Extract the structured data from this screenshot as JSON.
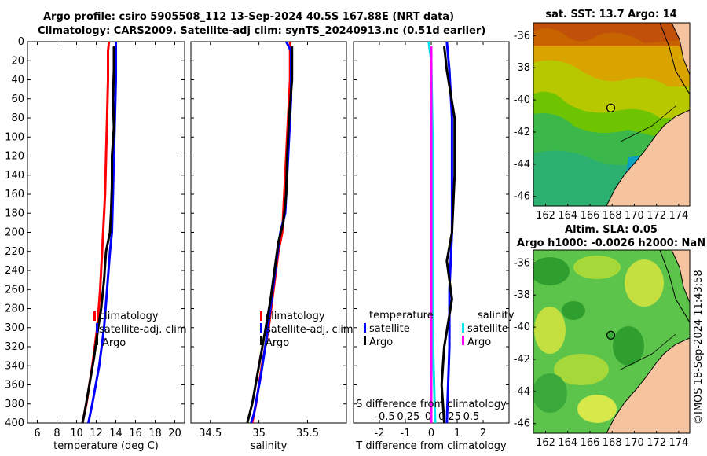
{
  "header": {
    "line1": "Argo profile: csiro 5905508_112 13-Sep-2024 40.5S 167.88E (NRT data)",
    "line2": "Climatology: CARS2009. Satellite-adj clim: synTS_20240913.nc (0.51d earlier)"
  },
  "colors": {
    "climatology": "#ff0000",
    "satellite": "#0000ff",
    "argo": "#000000",
    "sal_satellite": "#00e5ee",
    "sal_argo": "#ff00ff",
    "land": "#f5c49e"
  },
  "chart_data": [
    {
      "type": "line",
      "name": "temperature-profile",
      "xlabel": "temperature (deg C)",
      "xlim": [
        5,
        21
      ],
      "xticks": [
        6,
        8,
        10,
        12,
        14,
        16,
        18,
        20
      ],
      "ylim": [
        0,
        400
      ],
      "yticks": [
        0,
        20,
        40,
        60,
        80,
        100,
        120,
        140,
        160,
        180,
        200,
        220,
        240,
        260,
        280,
        300,
        320,
        340,
        360,
        380,
        400
      ],
      "legend": [
        "climatology",
        "satellite-adj. clim",
        "Argo"
      ],
      "series": [
        {
          "name": "climatology",
          "color": "#ff0000",
          "points": [
            [
              13.3,
              0
            ],
            [
              13.2,
              10
            ],
            [
              13.2,
              40
            ],
            [
              13.1,
              80
            ],
            [
              13.0,
              120
            ],
            [
              12.9,
              160
            ],
            [
              12.7,
              200
            ],
            [
              12.6,
              220
            ],
            [
              12.4,
              260
            ],
            [
              12.1,
              300
            ],
            [
              11.6,
              340
            ],
            [
              11.0,
              380
            ],
            [
              10.6,
              400
            ]
          ]
        },
        {
          "name": "satellite-adj. clim",
          "color": "#0000ff",
          "points": [
            [
              14.0,
              0
            ],
            [
              14.0,
              40
            ],
            [
              13.9,
              80
            ],
            [
              13.8,
              120
            ],
            [
              13.7,
              160
            ],
            [
              13.6,
              200
            ],
            [
              13.4,
              220
            ],
            [
              13.1,
              260
            ],
            [
              12.8,
              300
            ],
            [
              12.3,
              340
            ],
            [
              11.6,
              380
            ],
            [
              11.2,
              400
            ]
          ]
        },
        {
          "name": "Argo",
          "color": "#000000",
          "points": [
            [
              13.8,
              5
            ],
            [
              13.8,
              30
            ],
            [
              13.7,
              60
            ],
            [
              13.8,
              90
            ],
            [
              13.6,
              120
            ],
            [
              13.6,
              150
            ],
            [
              13.5,
              180
            ],
            [
              13.4,
              200
            ],
            [
              13.0,
              220
            ],
            [
              12.8,
              250
            ],
            [
              12.5,
              280
            ],
            [
              12.2,
              300
            ],
            [
              11.8,
              330
            ],
            [
              11.3,
              360
            ],
            [
              10.8,
              390
            ],
            [
              10.6,
              400
            ]
          ]
        }
      ]
    },
    {
      "type": "line",
      "name": "salinity-profile",
      "xlabel": "salinity",
      "xlim": [
        34.3,
        35.9
      ],
      "xticks": [
        34.5,
        35,
        35.5
      ],
      "ylim": [
        0,
        400
      ],
      "legend": [
        "climatology",
        "satellite-adj. clim",
        "Argo"
      ],
      "series": [
        {
          "name": "climatology",
          "color": "#ff0000",
          "points": [
            [
              35.32,
              0
            ],
            [
              35.32,
              40
            ],
            [
              35.3,
              80
            ],
            [
              35.28,
              120
            ],
            [
              35.26,
              160
            ],
            [
              35.24,
              200
            ],
            [
              35.2,
              220
            ],
            [
              35.15,
              260
            ],
            [
              35.1,
              300
            ],
            [
              35.03,
              340
            ],
            [
              34.97,
              380
            ],
            [
              34.93,
              400
            ]
          ]
        },
        {
          "name": "satellite-adj. clim",
          "color": "#0000ff",
          "points": [
            [
              35.28,
              0
            ],
            [
              35.33,
              10
            ],
            [
              35.33,
              60
            ],
            [
              35.31,
              100
            ],
            [
              35.29,
              140
            ],
            [
              35.27,
              180
            ],
            [
              35.22,
              200
            ],
            [
              35.18,
              230
            ],
            [
              35.13,
              270
            ],
            [
              35.08,
              310
            ],
            [
              35.02,
              350
            ],
            [
              34.95,
              390
            ],
            [
              34.92,
              400
            ]
          ]
        },
        {
          "name": "Argo",
          "color": "#000000",
          "points": [
            [
              35.34,
              5
            ],
            [
              35.34,
              40
            ],
            [
              35.31,
              80
            ],
            [
              35.29,
              120
            ],
            [
              35.28,
              160
            ],
            [
              35.25,
              190
            ],
            [
              35.2,
              210
            ],
            [
              35.16,
              240
            ],
            [
              35.12,
              270
            ],
            [
              35.07,
              300
            ],
            [
              35.0,
              340
            ],
            [
              34.93,
              380
            ],
            [
              34.88,
              400
            ]
          ]
        }
      ]
    },
    {
      "type": "line",
      "name": "difference-profile",
      "xlabel": "T difference from climatology",
      "xlabel_top": "S difference from climatology",
      "xlim": [
        -3,
        3
      ],
      "xticks": [
        -2,
        -1,
        0,
        1,
        2
      ],
      "xticks_top": [
        -0.5,
        -0.25,
        0,
        0.25,
        0.5
      ],
      "xtick_labels_top": [
        "-0.5",
        "-0.25",
        "0",
        "0.25",
        "0.5"
      ],
      "ylim": [
        0,
        400
      ],
      "legend_temperature_title": "temperature",
      "legend_temperature": [
        "satellite",
        "Argo"
      ],
      "legend_salinity_title": "salinity",
      "legend_salinity": [
        "satellite",
        "Argo"
      ],
      "series": [
        {
          "name": "T satellite",
          "color": "#0000ff",
          "points": [
            [
              0.6,
              0
            ],
            [
              0.7,
              30
            ],
            [
              0.8,
              80
            ],
            [
              0.8,
              150
            ],
            [
              0.8,
              200
            ],
            [
              0.7,
              260
            ],
            [
              0.7,
              320
            ],
            [
              0.6,
              400
            ]
          ]
        },
        {
          "name": "T Argo",
          "color": "#000000",
          "points": [
            [
              0.5,
              5
            ],
            [
              0.6,
              30
            ],
            [
              0.9,
              80
            ],
            [
              0.9,
              140
            ],
            [
              0.8,
              200
            ],
            [
              0.6,
              230
            ],
            [
              0.8,
              270
            ],
            [
              0.5,
              320
            ],
            [
              0.4,
              360
            ],
            [
              0.5,
              400
            ]
          ]
        },
        {
          "name": "S satellite",
          "color": "#00e5ee",
          "points": [
            [
              -0.1,
              0
            ],
            [
              0.0,
              20
            ],
            [
              0.05,
              100
            ],
            [
              0.05,
              200
            ],
            [
              0.05,
              300
            ],
            [
              0.15,
              400
            ]
          ]
        },
        {
          "name": "S Argo",
          "color": "#ff00ff",
          "points": [
            [
              0.0,
              5
            ],
            [
              0.0,
              60
            ],
            [
              0.0,
              200
            ],
            [
              0.0,
              300
            ],
            [
              0.0,
              400
            ]
          ]
        }
      ]
    },
    {
      "type": "heatmap",
      "name": "sst-map",
      "title": "sat. SST: 13.7 Argo: 14",
      "xticks": [
        162,
        164,
        166,
        168,
        170,
        172,
        174
      ],
      "yticks": [
        -36,
        -38,
        -40,
        -42,
        -44,
        -46
      ],
      "xlim": [
        160.9,
        175
      ],
      "ylim": [
        -46.6,
        -35.2
      ],
      "marker": {
        "lon": 167.88,
        "lat": -40.5
      }
    },
    {
      "type": "heatmap",
      "name": "sla-map",
      "title": "Altim. SLA: 0.05",
      "subtitle": "Argo h1000: -0.0026 h2000: NaN",
      "xticks": [
        162,
        164,
        166,
        168,
        170,
        172,
        174
      ],
      "yticks": [
        -36,
        -38,
        -40,
        -42,
        -44,
        -46
      ],
      "xlim": [
        160.9,
        175
      ],
      "ylim": [
        -46.6,
        -35.2
      ],
      "marker": {
        "lon": 167.88,
        "lat": -40.5
      }
    }
  ],
  "watermark": "©IMOS 18-Sep-2024 11:43:58"
}
